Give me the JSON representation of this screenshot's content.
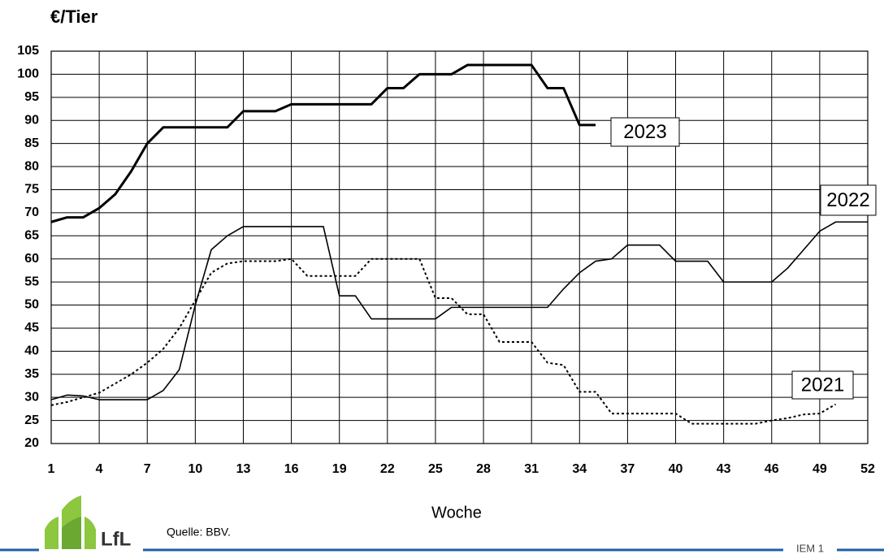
{
  "chart_data": {
    "type": "line",
    "title": "€/Tier",
    "x_label": "Woche",
    "source": "Quelle: BBV.",
    "logo": "LfL",
    "footer": "IEM 1",
    "x": [
      1,
      2,
      3,
      4,
      5,
      6,
      7,
      8,
      9,
      10,
      11,
      12,
      13,
      14,
      15,
      16,
      17,
      18,
      19,
      20,
      21,
      22,
      23,
      24,
      25,
      26,
      27,
      28,
      29,
      30,
      31,
      32,
      33,
      34,
      35,
      36,
      37,
      38,
      39,
      40,
      41,
      42,
      43,
      44,
      45,
      46,
      47,
      48,
      49,
      50,
      51,
      52
    ],
    "xlim": [
      1,
      52
    ],
    "xticks": [
      1,
      4,
      7,
      10,
      13,
      16,
      19,
      22,
      25,
      28,
      31,
      34,
      37,
      40,
      43,
      46,
      49,
      52
    ],
    "ylim": [
      20,
      105
    ],
    "yticks": [
      20,
      25,
      30,
      35,
      40,
      45,
      50,
      55,
      60,
      65,
      70,
      75,
      80,
      85,
      90,
      95,
      100,
      105
    ],
    "grid": true,
    "series": [
      {
        "name": "2023",
        "color": "#000000",
        "style": "solid",
        "width": 3,
        "values": [
          68,
          69,
          69,
          71,
          74,
          79,
          85,
          88.5,
          88.5,
          88.5,
          88.5,
          88.5,
          92,
          92,
          92,
          93.5,
          93.5,
          93.5,
          93.5,
          93.5,
          93.5,
          97,
          97,
          100,
          100,
          100,
          102,
          102,
          102,
          102,
          102,
          97,
          97,
          89,
          89,
          null,
          null,
          null,
          null,
          null,
          null,
          null,
          null,
          null,
          null,
          null,
          null,
          null,
          null,
          null,
          null,
          null
        ]
      },
      {
        "name": "2022",
        "color": "#000000",
        "style": "solid",
        "width": 1.6,
        "values": [
          29.5,
          30.5,
          30.3,
          29.5,
          29.5,
          29.5,
          29.5,
          31.5,
          36,
          50,
          62,
          65,
          67,
          67,
          67,
          67,
          67,
          67,
          52,
          52,
          47,
          47,
          47,
          47,
          47,
          49.5,
          49.5,
          49.5,
          49.5,
          49.5,
          49.5,
          49.5,
          53.5,
          57,
          59.5,
          60,
          63,
          63,
          63,
          59.5,
          59.5,
          59.5,
          55,
          55,
          55,
          55,
          58,
          62,
          66,
          68,
          68,
          68
        ]
      },
      {
        "name": "2021",
        "color": "#000000",
        "style": "dotted",
        "width": 2,
        "values": [
          28.3,
          29,
          30,
          31,
          33,
          35,
          37.5,
          40.5,
          45,
          51,
          57,
          59,
          59.5,
          59.5,
          59.5,
          60,
          56.3,
          56.3,
          56.3,
          56.3,
          60,
          60,
          60,
          60,
          51.5,
          51.5,
          48,
          48,
          42,
          42,
          42,
          37.5,
          37,
          31.2,
          31.2,
          26.5,
          26.5,
          26.5,
          26.5,
          26.5,
          24.3,
          24.3,
          24.3,
          24.3,
          24.3,
          25,
          25.5,
          26.3,
          26.5,
          28.5,
          null,
          null
        ]
      }
    ]
  }
}
